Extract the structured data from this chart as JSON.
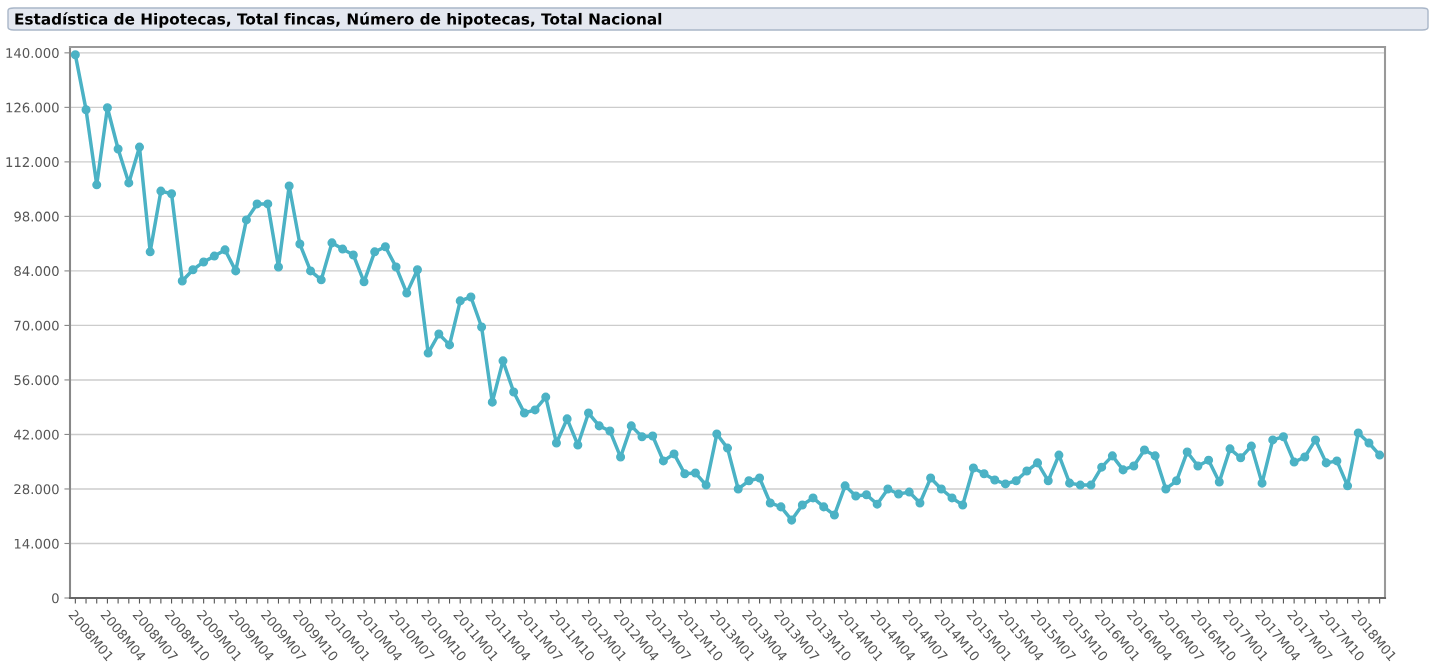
{
  "chart_data": {
    "type": "line",
    "title": "Estadística de Hipotecas, Total fincas, Número de hipotecas, Total Nacional",
    "categories": [
      "2008M01",
      null,
      null,
      "2008M04",
      null,
      null,
      "2008M07",
      null,
      null,
      "2008M10",
      null,
      null,
      "2009M01",
      null,
      null,
      "2009M04",
      null,
      null,
      "2009M07",
      null,
      null,
      "2009M10",
      null,
      null,
      "2010M01",
      null,
      null,
      "2010M04",
      null,
      null,
      "2010M07",
      null,
      null,
      "2010M10",
      null,
      null,
      "2011M01",
      null,
      null,
      "2011M04",
      null,
      null,
      "2011M07",
      null,
      null,
      "2011M10",
      null,
      null,
      "2012M01",
      null,
      null,
      "2012M04",
      null,
      null,
      "2012M07",
      null,
      null,
      "2012M10",
      null,
      null,
      "2013M01",
      null,
      null,
      "2013M04",
      null,
      null,
      "2013M07",
      null,
      null,
      "2013M10",
      null,
      null,
      "2014M01",
      null,
      null,
      "2014M04",
      null,
      null,
      "2014M07",
      null,
      null,
      "2014M10",
      null,
      null,
      "2015M01",
      null,
      null,
      "2015M04",
      null,
      null,
      "2015M07",
      null,
      null,
      "2015M10",
      null,
      null,
      "2016M01",
      null,
      null,
      "2016M04",
      null,
      null,
      "2016M07",
      null,
      null,
      "2016M10",
      null,
      null,
      "2017M01",
      null,
      null,
      "2017M04",
      null,
      null,
      "2017M07",
      null,
      null,
      "2017M10",
      null,
      null,
      "2018M01",
      null,
      null
    ],
    "series": [
      {
        "color": "#4bb2c5",
        "values": [
          139500,
          125400,
          106100,
          125900,
          115300,
          106600,
          115800,
          88900,
          104500,
          103800,
          81400,
          84300,
          86300,
          87800,
          89400,
          84000,
          97100,
          101200,
          101200,
          85000,
          105800,
          90900,
          84000,
          81700,
          91200,
          89600,
          88100,
          81200,
          88900,
          90200,
          85000,
          78300,
          84300,
          62900,
          67800,
          65000,
          76300,
          77300,
          69600,
          50300,
          60900,
          52900,
          47500,
          48300,
          51600,
          39800,
          46000,
          39300,
          47500,
          44200,
          42900,
          36200,
          44200,
          41400,
          41600,
          35200,
          37000,
          31900,
          32100,
          29000,
          42100,
          38500,
          28000,
          30100,
          30800,
          24400,
          23400,
          20000,
          23900,
          25700,
          23400,
          21300,
          28800,
          26200,
          26500,
          24100,
          28000,
          26700,
          27200,
          24400,
          30800,
          28000,
          25700,
          23900,
          33400,
          31900,
          30300,
          29300,
          30100,
          32600,
          34700,
          30100,
          36700,
          29500,
          29000,
          29000,
          33600,
          36500,
          32900,
          33900,
          38000,
          36500,
          28000,
          30100,
          37500,
          33900,
          35400,
          29800,
          38300,
          36000,
          39000,
          29500,
          40600,
          41400,
          34900,
          36200,
          40600,
          34700,
          35200,
          28800,
          42400,
          39800,
          36700
        ]
      }
    ],
    "ylim": [
      0,
      141500
    ],
    "yticks": [
      0,
      {
        "value": 14000,
        "label": "14.000"
      },
      {
        "value": 28000,
        "label": "28.000"
      },
      {
        "value": 42000,
        "label": "42.000"
      },
      {
        "value": 56000,
        "label": "56.000"
      },
      {
        "value": 70000,
        "label": "70.000"
      },
      {
        "value": 84000,
        "label": "84.000"
      },
      {
        "value": 98000,
        "label": "98.000"
      },
      {
        "value": 112000,
        "label": "112.000"
      },
      {
        "value": 126000,
        "label": "126.000"
      },
      {
        "value": 140000,
        "label": "140.000"
      }
    ],
    "grid": "y",
    "marker": "circle",
    "line_style": "solid"
  }
}
